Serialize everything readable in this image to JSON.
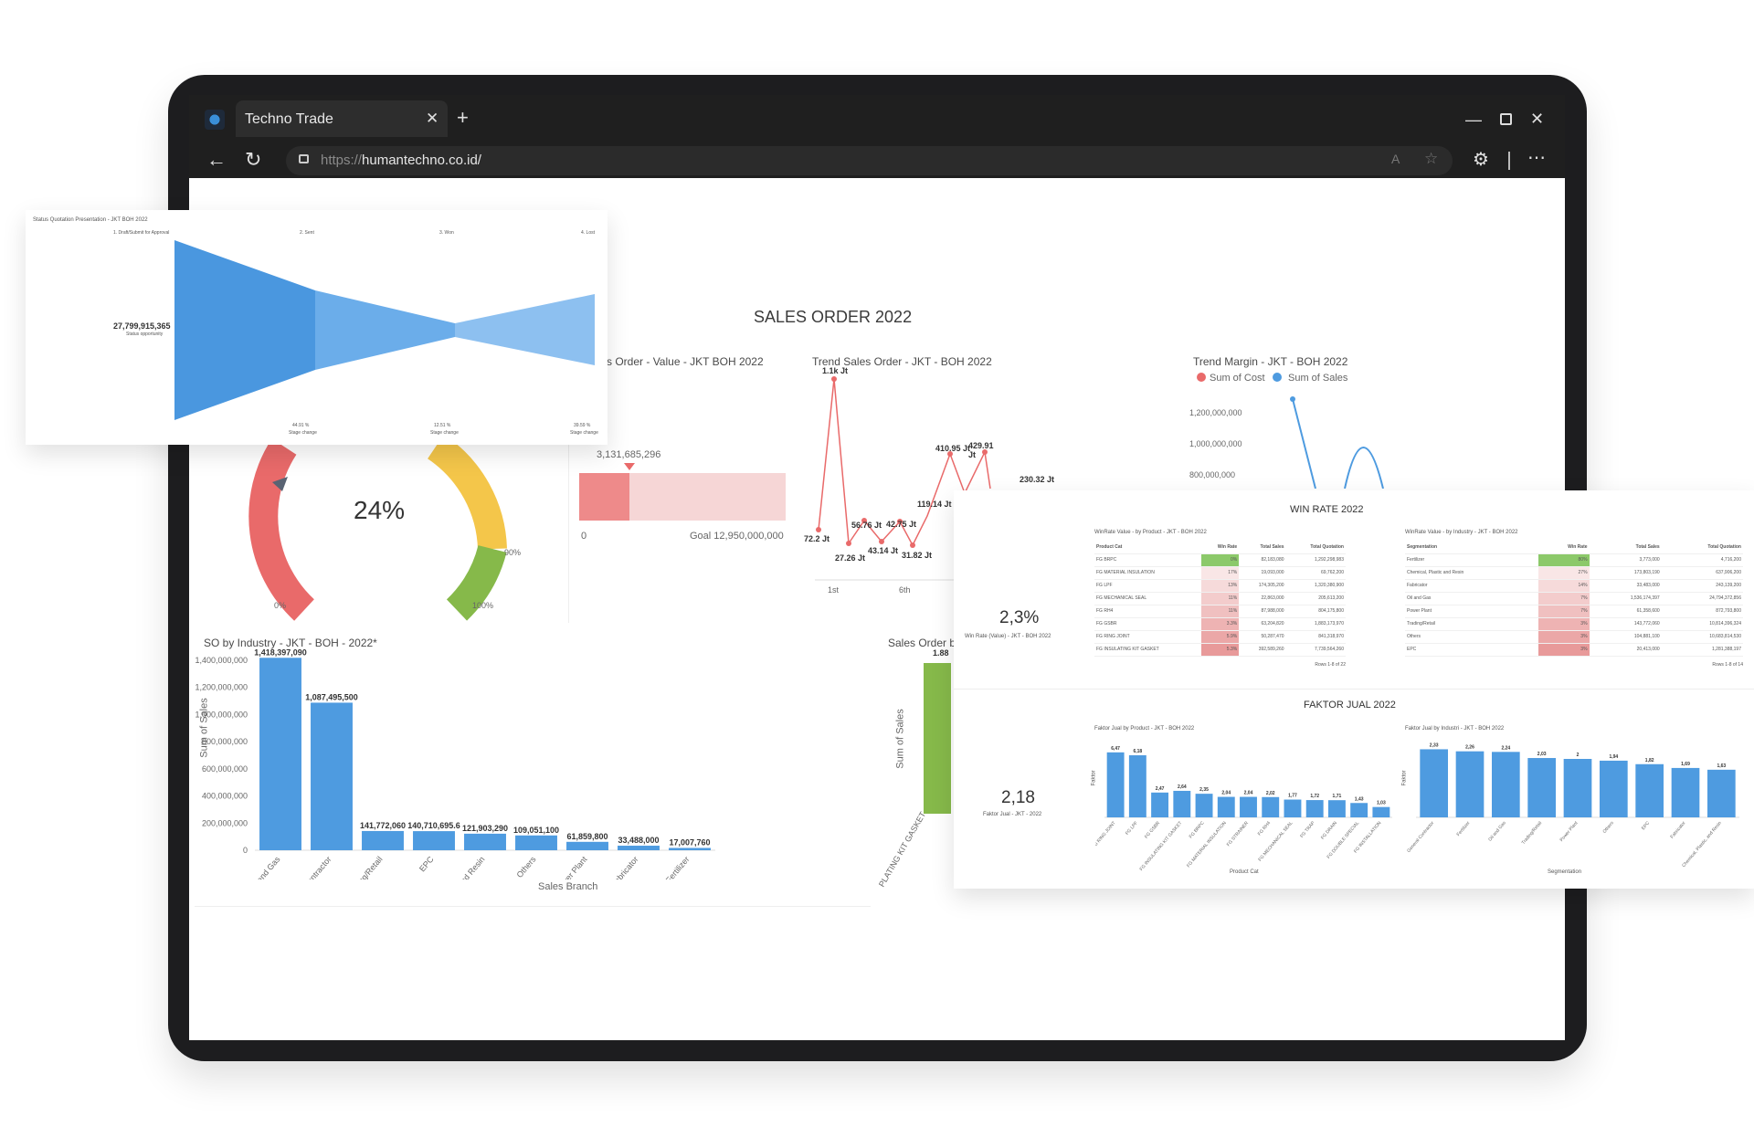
{
  "browser": {
    "tab_title": "Techno Trade",
    "url_scheme": "https://",
    "url_host": "humantechno.co.id/"
  },
  "dashboard": {
    "title": "SALES ORDER 2022",
    "funnel": {
      "title": "Status Quotation Presentation - JKT BOH 2022",
      "stages": [
        "1. Draft/Submit for Approval",
        "2. Sent",
        "3. Won",
        "4. Lost"
      ],
      "pcts": [
        "44.91 %",
        "12.51 %",
        "39.59 %"
      ],
      "sublabels": [
        "Stage change",
        "Stage change",
        "Stage change"
      ],
      "value": "27,799,915,365",
      "value_caption": "Status opportunity"
    },
    "gauge": {
      "value": "24%",
      "min": "0%",
      "mark": "90%",
      "max": "100%"
    },
    "progress": {
      "title": "Sales Order - Value - JKT BOH 2022",
      "value": "3,131,685,296",
      "zero": "0",
      "goal": "Goal 12,950,000,000",
      "fraction": 0.242
    },
    "trend_sales": {
      "title": "Trend Sales Order - JKT - BOH 2022",
      "labels": [
        "1.1k Jt",
        "72.2 Jt",
        "27.26 Jt",
        "56.76 Jt",
        "43.14 Jt",
        "42.75 Jt",
        "31.82 Jt",
        "119.14 Jt",
        "410.95 Jt",
        "429.91 Jt",
        "230.32 Jt"
      ],
      "x_ticks": [
        "1st",
        "6th"
      ]
    },
    "trend_margin": {
      "title": "Trend Margin - JKT - BOH 2022",
      "legend": [
        "Sum of Cost",
        "Sum of Sales"
      ],
      "y_ticks": [
        "1,200,000,000",
        "1,000,000,000",
        "800,000,000"
      ]
    },
    "so_industry": {
      "title": "SO by Industry - JKT - BOH - 2022*",
      "ylabel": "Sum of Sales",
      "xlabel": "Sales Branch",
      "y_ticks": [
        "1,400,000,000",
        "1,200,000,000",
        "1,000,000,000",
        "800,000,000",
        "600,000,000",
        "400,000,000",
        "200,000,000",
        "0"
      ]
    },
    "so_by": {
      "title": "Sales Order by",
      "ylabel": "Sum of Sales",
      "value": "1.88",
      "tick": "PLATING KIT GASKET"
    },
    "win_rate": {
      "title": "WIN RATE 2022",
      "kpi": "2,3%",
      "kpi_caption": "Win Rate (Value) - JKT - BOH 2022",
      "t1": {
        "title": "WinRate Value - by Product - JKT - BOH 2022",
        "headers": [
          "Product Cat",
          "Win Rate",
          "Total Sales",
          "Total Quotation"
        ],
        "rows": [
          [
            "FG BRPC",
            "0%",
            "82,183,080",
            "1,292,298,983"
          ],
          [
            "FG MATERIAL INSULATION",
            "17%",
            "19,093,000",
            "69,762,200"
          ],
          [
            "FG LPF",
            "13%",
            "174,305,200",
            "1,320,380,900"
          ],
          [
            "FG MECHANICAL SEAL",
            "11%",
            "22,863,000",
            "205,613,200"
          ],
          [
            "FG RH4",
            "11%",
            "87,988,000",
            "804,175,800"
          ],
          [
            "FG GSBR",
            "3.3%",
            "63,204,820",
            "1,883,173,970"
          ],
          [
            "FG RING JOINT",
            "5.9%",
            "50,287,470",
            "841,318,970"
          ],
          [
            "FG INSULATING KIT GASKET",
            "5.3%",
            "392,589,260",
            "7,739,564,260"
          ]
        ],
        "footer": "Rows 1-8 of 22"
      },
      "t2": {
        "title": "WinRate Value - by Industry - JKT - BOH 2022",
        "headers": [
          "Segmentation",
          "Win Rate",
          "Total Sales",
          "Total Quotation"
        ],
        "rows": [
          [
            "Fertilizer",
            "80%",
            "3,773,000",
            "4,716,200"
          ],
          [
            "Chemical, Plastic and Resin",
            "27%",
            "173,803,190",
            "637,906,200"
          ],
          [
            "Fabricator",
            "14%",
            "33,483,000",
            "243,139,200"
          ],
          [
            "Oil and Gas",
            "7%",
            "1,536,174,397",
            "24,794,372,856"
          ],
          [
            "Power Plant",
            "7%",
            "61,358,600",
            "872,793,800"
          ],
          [
            "Trading/Retail",
            "3%",
            "143,772,060",
            "10,814,396,324"
          ],
          [
            "Others",
            "3%",
            "104,881,100",
            "10,683,814,530"
          ],
          [
            "EPC",
            "3%",
            "20,413,000",
            "1,281,388,197"
          ]
        ],
        "footer": "Rows 1-8 of 14"
      }
    },
    "faktor": {
      "title": "FAKTOR JUAL 2022",
      "kpi": "2,18",
      "kpi_caption": "Faktor Jual - JKT - 2022",
      "c1": {
        "title": "Faktor Jual by Product - JKT - BOH 2022",
        "xlabel": "Product Cat",
        "ylabel": "Faktor"
      },
      "c2": {
        "title": "Faktor Jual by Industri - JKT - BOH 2022",
        "xlabel": "Segmentation",
        "ylabel": "Faktor"
      }
    }
  },
  "chart_data": [
    {
      "type": "bar",
      "title": "SO by Industry - JKT - BOH - 2022*",
      "xlabel": "Sales Branch",
      "ylabel": "Sum of Sales",
      "ylim": [
        0,
        1400000000
      ],
      "categories": [
        "Oil and Gas",
        "General Contractor",
        "Trading/Retail",
        "EPC",
        "Chemical, Plastic, and Resin",
        "Others",
        "Power Plant",
        "Fabricator",
        "Fertilizer"
      ],
      "values": [
        1418397090,
        1087495500,
        141772060,
        140710695.6,
        121903290,
        109051100,
        61859800,
        33488000,
        17007760
      ],
      "value_labels": [
        "1,418,397,090",
        "1,087,495,500",
        "141,772,060",
        "140,710,695.6",
        "121,903,290",
        "109,051,100",
        "61,859,800",
        "33,488,000",
        "17,007,760"
      ],
      "color": "#4e9be0"
    },
    {
      "type": "bar",
      "title": "Faktor Jual by Product - JKT - BOH 2022",
      "xlabel": "Product Cat",
      "ylabel": "Faktor",
      "ylim": [
        0,
        7
      ],
      "categories": [
        "FG RING JOINT",
        "FG LPF",
        "FG GSBR",
        "FG INSULATING KIT GASKET",
        "FG BRPC",
        "FG MATERIAL INSULATION",
        "FG STRAINER",
        "FG RH4",
        "FG MECHANICAL SEAL",
        "FG TRAP",
        "FG DRAIN",
        "FG DOUBLE SPECIAL",
        "FG INSTALLATION"
      ],
      "values": [
        6.47,
        6.18,
        2.47,
        2.64,
        2.35,
        2.04,
        2.04,
        2.02,
        1.77,
        1.72,
        1.71,
        1.43,
        1.03
      ],
      "value_labels": [
        "6,47",
        "6,18",
        "2,47",
        "2,64",
        "2,35",
        "2,04",
        "2,04",
        "2,02",
        "1,77",
        "1,72",
        "1,71",
        "1,43",
        "1,03"
      ],
      "color": "#4e9be0"
    },
    {
      "type": "bar",
      "title": "Faktor Jual by Industri - JKT - BOH 2022",
      "xlabel": "Segmentation",
      "ylabel": "Faktor",
      "ylim": [
        0,
        2.5
      ],
      "categories": [
        "General Contractor",
        "Fertilizer",
        "Oil and Gas",
        "Trading/Retail",
        "Power Plant",
        "Others",
        "EPC",
        "Fabricator",
        "Chemical, Plastic, and Resin"
      ],
      "values": [
        2.33,
        2.26,
        2.24,
        2.03,
        2,
        1.94,
        1.82,
        1.69,
        1.63
      ],
      "value_labels": [
        "2,33",
        "2,26",
        "2,24",
        "2,03",
        "2",
        "1,94",
        "1,82",
        "1,69",
        "1,63"
      ],
      "color": "#4e9be0"
    }
  ]
}
